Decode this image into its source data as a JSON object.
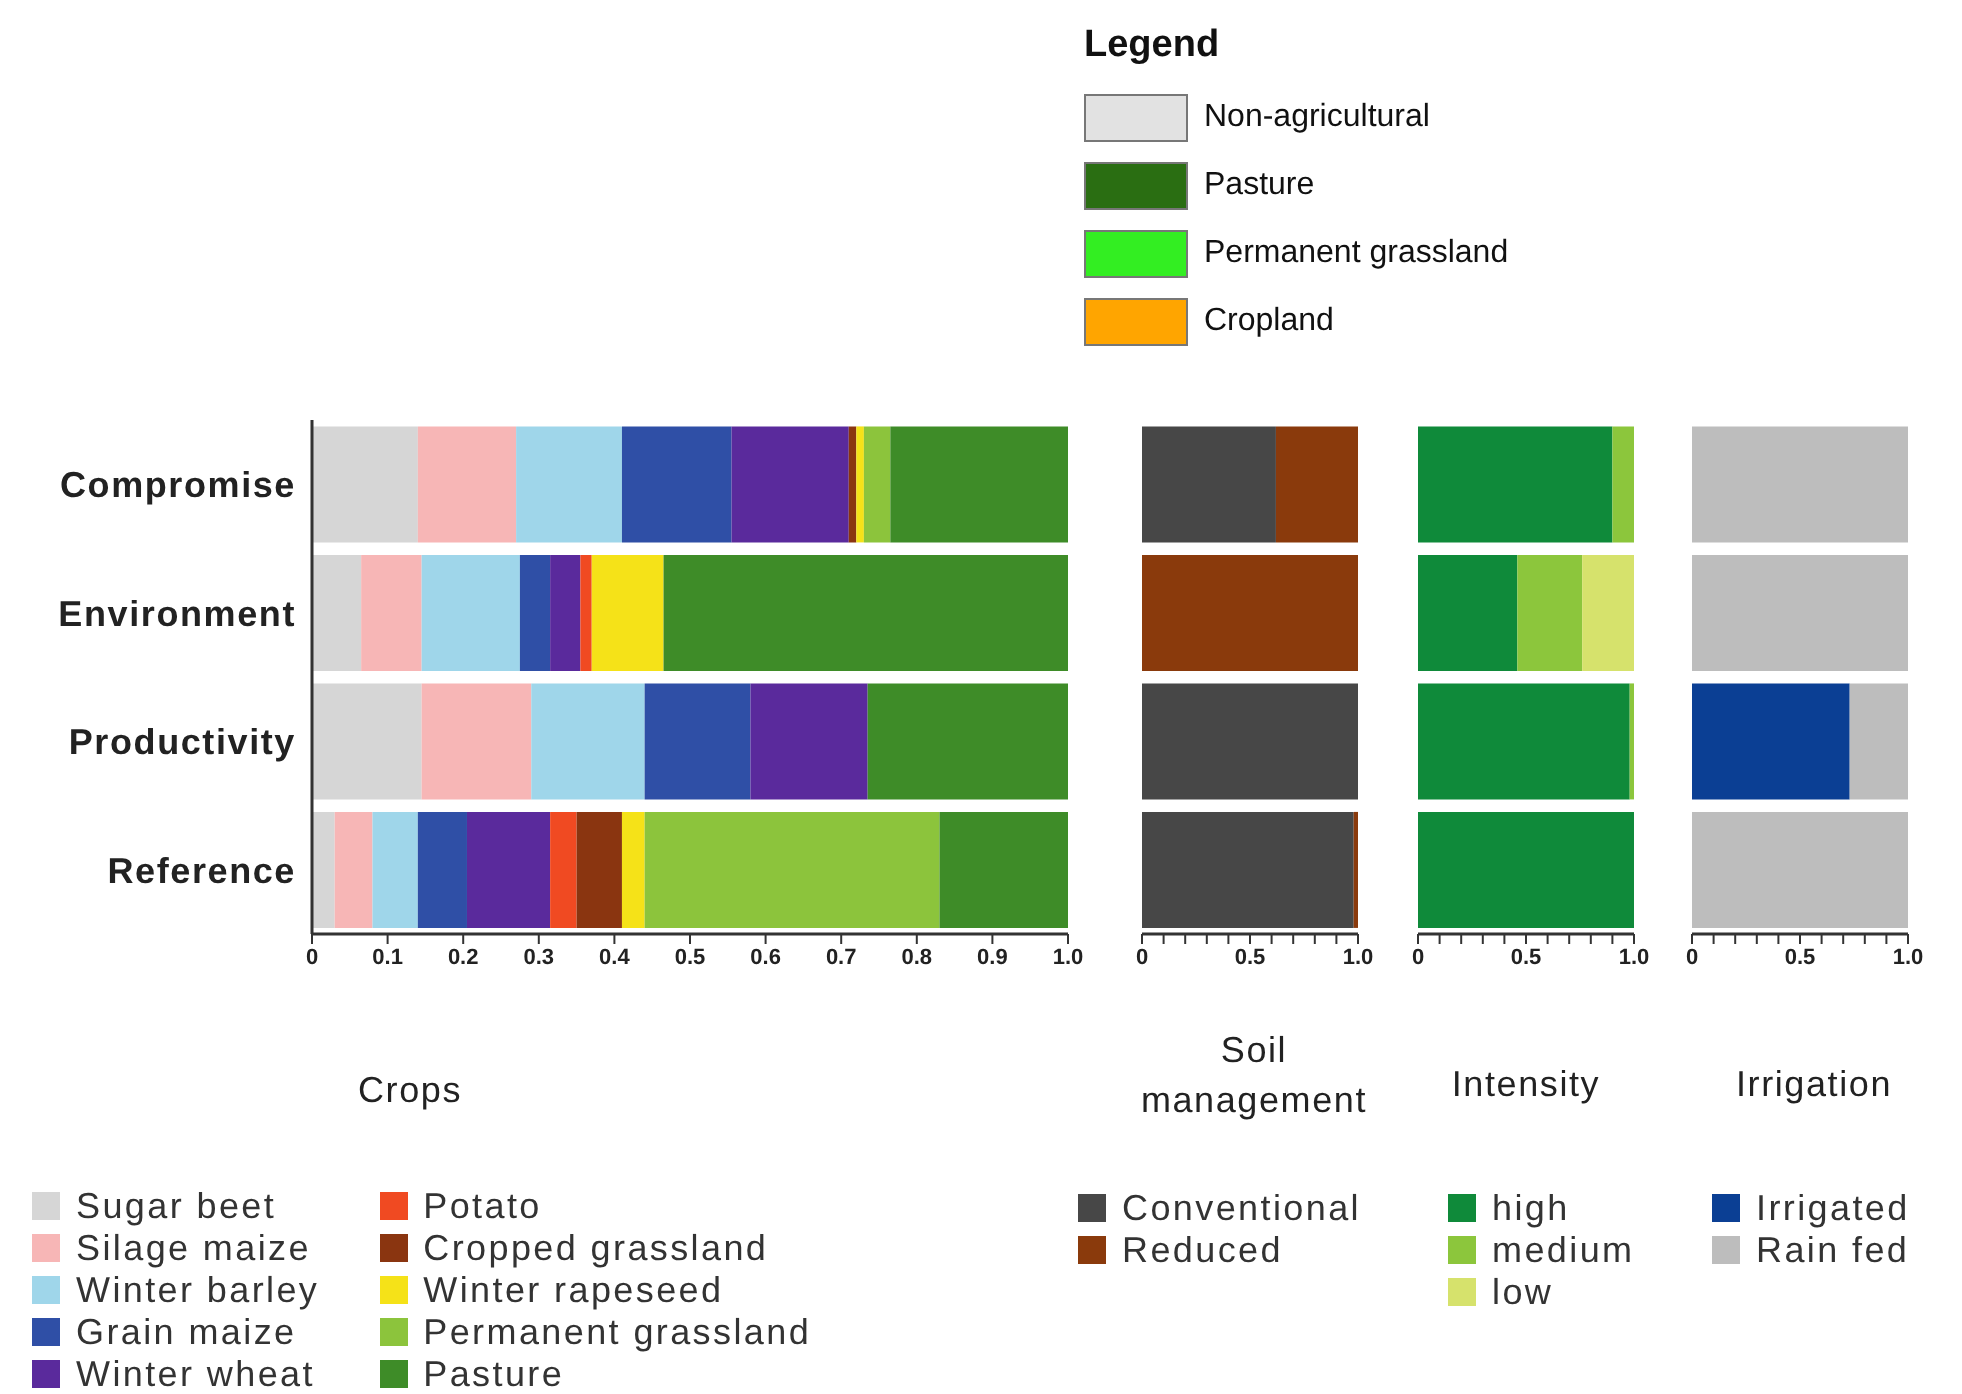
{
  "chart_data": [
    {
      "type": "other",
      "legend_title": "Legend",
      "series": [
        {
          "name": "Non-agricultural",
          "color": "#e2e2e2"
        },
        {
          "name": "Pasture",
          "color": "#2a6e12"
        },
        {
          "name": "Permanent grassland",
          "color": "#33ee22"
        },
        {
          "name": "Cropland",
          "color": "#ffa500"
        }
      ]
    },
    {
      "type": "bar",
      "orientation": "horizontal",
      "stacked": true,
      "xlabel": "Crops",
      "categories": [
        "Compromise",
        "Environment",
        "Productivity",
        "Reference"
      ],
      "xlim": [
        0,
        1
      ],
      "xticks": [
        0,
        0.1,
        0.2,
        0.3,
        0.4,
        0.5,
        0.6,
        0.7,
        0.8,
        0.9,
        {
          "value": 1,
          "label": "1.0"
        }
      ],
      "legend": "bottom",
      "series": [
        {
          "name": "Sugar beet",
          "color": "#d6d6d6",
          "values": [
            0.14,
            0.065,
            0.145,
            0.03
          ]
        },
        {
          "name": "Silage maize",
          "color": "#f7b6b6",
          "values": [
            0.13,
            0.08,
            0.145,
            0.05
          ]
        },
        {
          "name": "Winter barley",
          "color": "#9fd6ea",
          "values": [
            0.14,
            0.13,
            0.15,
            0.06
          ]
        },
        {
          "name": "Grain maize",
          "color": "#2f4fa6",
          "values": [
            0.145,
            0.04,
            0.14,
            0.065
          ]
        },
        {
          "name": "Winter wheat",
          "color": "#5a2a9c",
          "values": [
            0.155,
            0.04,
            0.155,
            0.11
          ]
        },
        {
          "name": "Potato",
          "color": "#f04a22",
          "values": [
            0,
            0.015,
            0,
            0.035
          ]
        },
        {
          "name": "Cropped grassland",
          "color": "#8a3510",
          "values": [
            0.01,
            0,
            0,
            0.06
          ]
        },
        {
          "name": "Winter rapeseed",
          "color": "#f5e218",
          "values": [
            0.01,
            0.095,
            0,
            0.03
          ]
        },
        {
          "name": "Permanent grassland",
          "color": "#8cc43c",
          "values": [
            0.035,
            0,
            0,
            0.39
          ]
        },
        {
          "name": "Pasture",
          "color": "#3e8c28",
          "values": [
            0.235,
            0.535,
            0.265,
            0.17
          ]
        }
      ]
    },
    {
      "type": "bar",
      "orientation": "horizontal",
      "stacked": true,
      "xlabel": "Soil management",
      "categories": [
        null,
        null,
        null,
        null
      ],
      "tick_labels": "x",
      "xlim": [
        0,
        1
      ],
      "xticks": [
        0,
        {
          "value": 0.1,
          "label": null
        },
        {
          "value": 0.2,
          "label": null
        },
        {
          "value": 0.3,
          "label": null
        },
        {
          "value": 0.4,
          "label": null
        },
        0.5,
        {
          "value": 0.6,
          "label": null
        },
        {
          "value": 0.7,
          "label": null
        },
        {
          "value": 0.8,
          "label": null
        },
        {
          "value": 0.9,
          "label": null
        },
        {
          "value": 1,
          "label": "1.0"
        }
      ],
      "legend": "bottom",
      "series": [
        {
          "name": "Conventional",
          "color": "#474747",
          "values": [
            0.62,
            0,
            1,
            0.98
          ]
        },
        {
          "name": "Reduced",
          "color": "#8a3a0c",
          "values": [
            0.38,
            1,
            0,
            0.02
          ]
        }
      ]
    },
    {
      "type": "bar",
      "orientation": "horizontal",
      "stacked": true,
      "xlabel": "Intensity",
      "categories": [
        null,
        null,
        null,
        null
      ],
      "tick_labels": "x",
      "xlim": [
        0,
        1
      ],
      "xticks": [
        0,
        {
          "value": 0.1,
          "label": null
        },
        {
          "value": 0.2,
          "label": null
        },
        {
          "value": 0.3,
          "label": null
        },
        {
          "value": 0.4,
          "label": null
        },
        0.5,
        {
          "value": 0.6,
          "label": null
        },
        {
          "value": 0.7,
          "label": null
        },
        {
          "value": 0.8,
          "label": null
        },
        {
          "value": 0.9,
          "label": null
        },
        {
          "value": 1,
          "label": "1.0"
        }
      ],
      "legend": "bottom",
      "series": [
        {
          "name": "high",
          "color": "#0f8a3a",
          "values": [
            0.9,
            0.46,
            0.98,
            1
          ]
        },
        {
          "name": "medium",
          "color": "#8cc63c",
          "values": [
            0.1,
            0.3,
            0.02,
            0
          ]
        },
        {
          "name": "low",
          "color": "#d6e26c",
          "values": [
            0,
            0.24,
            0,
            0
          ]
        }
      ]
    },
    {
      "type": "bar",
      "orientation": "horizontal",
      "stacked": true,
      "xlabel": "Irrigation",
      "categories": [
        null,
        null,
        null,
        null
      ],
      "tick_labels": "x",
      "xlim": [
        0,
        1
      ],
      "xticks": [
        0,
        {
          "value": 0.1,
          "label": null
        },
        {
          "value": 0.2,
          "label": null
        },
        {
          "value": 0.3,
          "label": null
        },
        {
          "value": 0.4,
          "label": null
        },
        0.5,
        {
          "value": 0.6,
          "label": null
        },
        {
          "value": 0.7,
          "label": null
        },
        {
          "value": 0.8,
          "label": null
        },
        {
          "value": 0.9,
          "label": null
        },
        {
          "value": 1,
          "label": "1.0"
        }
      ],
      "legend": "bottom",
      "series": [
        {
          "name": "Irrigated",
          "color": "#0b3f94",
          "values": [
            0,
            0,
            0.73,
            0
          ]
        },
        {
          "name": "Rain fed",
          "color": "#bdbdbd",
          "values": [
            1,
            1,
            0.27,
            1
          ]
        }
      ]
    }
  ]
}
